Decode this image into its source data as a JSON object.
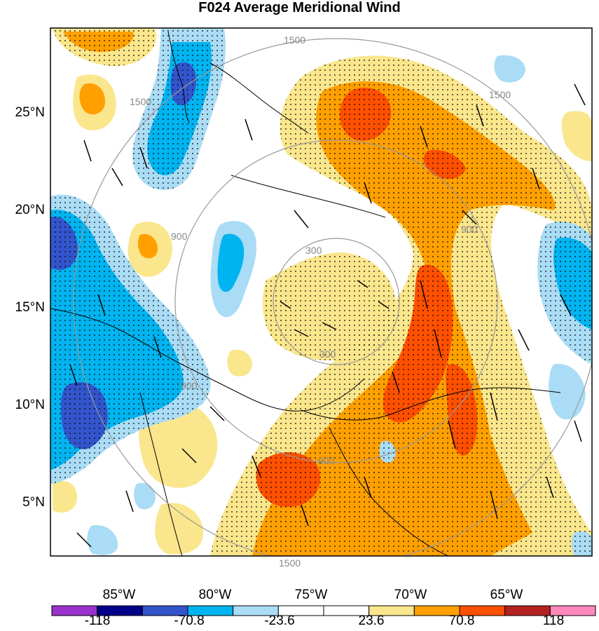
{
  "title": "F024 Average Meridional Wind",
  "lat_labels": [
    "25°N",
    "20°N",
    "15°N",
    "10°N",
    "5°N"
  ],
  "lon_labels": [
    "85°W",
    "80°W",
    "75°W",
    "70°W",
    "65°W"
  ],
  "range_ring_labels": [
    "300",
    "300",
    "900",
    "900",
    "900",
    "900",
    "1500",
    "1500",
    "1500",
    "1500"
  ],
  "colorbar": {
    "colors": [
      "#9933cc",
      "#00008b",
      "#3355cc",
      "#00b4f0",
      "#aadcf5",
      "#ffffff",
      "#ffffff",
      "#fae68c",
      "#ffa000",
      "#ff5000",
      "#b22222",
      "#ff88bb"
    ],
    "labels": [
      "-118",
      "-70.8",
      "-23.6",
      "23.6",
      "70.8",
      "118"
    ]
  }
}
